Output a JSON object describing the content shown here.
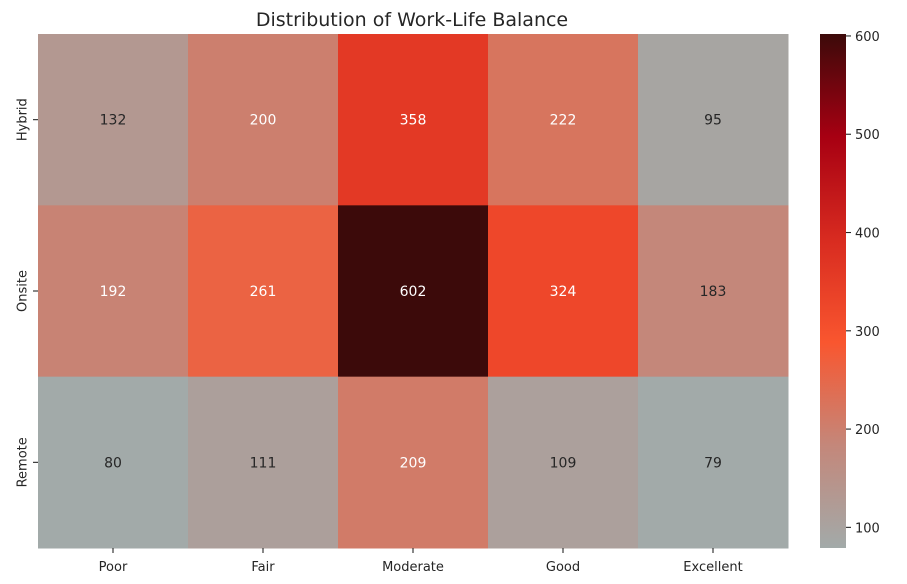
{
  "chart_data": {
    "type": "heatmap",
    "title": "Distribution of Work-Life Balance",
    "xlabel": "",
    "ylabel": "",
    "x_categories": [
      "Poor",
      "Fair",
      "Moderate",
      "Good",
      "Excellent"
    ],
    "y_categories": [
      "Hybrid",
      "Onsite",
      "Remote"
    ],
    "values": [
      [
        132,
        200,
        358,
        222,
        95
      ],
      [
        192,
        261,
        602,
        324,
        183
      ],
      [
        80,
        111,
        209,
        109,
        79
      ]
    ],
    "colorbar": {
      "min": 79,
      "max": 602,
      "ticks": [
        100,
        200,
        300,
        400,
        500,
        600
      ],
      "tick_labels": [
        "100",
        "200",
        "300",
        "400",
        "500",
        "600"
      ]
    },
    "colormap": [
      "#a2aaa9",
      "#c4877a",
      "#f9562f",
      "#d82b20",
      "#a70012",
      "#3c0a0a"
    ],
    "grid": false,
    "legend": "colorbar-right"
  }
}
